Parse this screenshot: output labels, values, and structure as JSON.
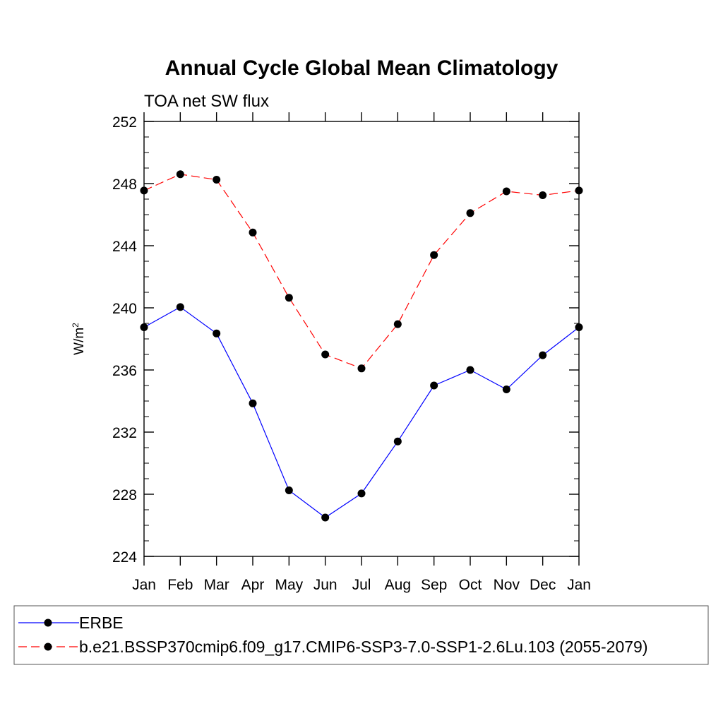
{
  "chart_data": {
    "type": "line",
    "title": "Annual Cycle Global Mean Climatology",
    "subtitle": "TOA net SW flux",
    "xlabel": "",
    "ylabel": "W/m",
    "ylabel_superscript": "2",
    "categories": [
      "Jan",
      "Feb",
      "Mar",
      "Apr",
      "May",
      "Jun",
      "Jul",
      "Aug",
      "Sep",
      "Oct",
      "Nov",
      "Dec",
      "Jan"
    ],
    "ylim": [
      224,
      252
    ],
    "yticks": [
      224,
      228,
      232,
      236,
      240,
      244,
      248,
      252
    ],
    "yticks_minor_step": 1,
    "grid": false,
    "legend_position": "bottom",
    "series": [
      {
        "name": "ERBE",
        "color": "#0000ff",
        "dash": "solid",
        "values": [
          238.75,
          240.05,
          238.35,
          233.85,
          228.25,
          226.5,
          228.05,
          231.4,
          235.0,
          236.0,
          234.75,
          236.95,
          238.75
        ]
      },
      {
        "name": "b.e21.BSSP370cmip6.f09_g17.CMIP6-SSP3-7.0-SSP1-2.6Lu.103 (2055-2079)",
        "color": "#ff0000",
        "dash": "dashed",
        "values": [
          247.55,
          248.6,
          248.25,
          244.85,
          240.65,
          237.0,
          236.1,
          238.95,
          243.4,
          246.1,
          247.5,
          247.25,
          247.55
        ]
      }
    ]
  }
}
